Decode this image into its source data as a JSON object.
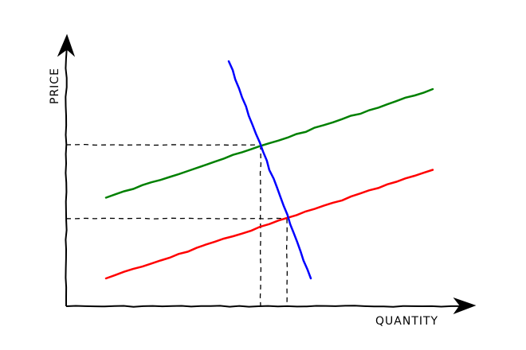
{
  "chart_data": {
    "type": "line",
    "title": "",
    "xlabel": "QUANTITY",
    "ylabel": "PRICE",
    "xlim": [
      0,
      10
    ],
    "ylim": [
      0,
      10
    ],
    "grid": false,
    "ticks": false,
    "style": "xkcd hand-drawn",
    "series": [
      {
        "color": "#008000",
        "points": [
          [
            1.0,
            3.9
          ],
          [
            9.2,
            7.8
          ]
        ]
      },
      {
        "color": "#ff0000",
        "points": [
          [
            1.0,
            1.0
          ],
          [
            9.2,
            4.9
          ]
        ]
      },
      {
        "color": "#0000ff",
        "points": [
          [
            4.08,
            8.8
          ],
          [
            6.14,
            1.0
          ]
        ]
      }
    ],
    "guides": [
      {
        "style": "dashed",
        "color": "#000000",
        "point": [
          4.84,
          5.8
        ]
      },
      {
        "style": "dashed",
        "color": "#000000",
        "point": [
          5.5,
          3.15
        ]
      }
    ]
  }
}
